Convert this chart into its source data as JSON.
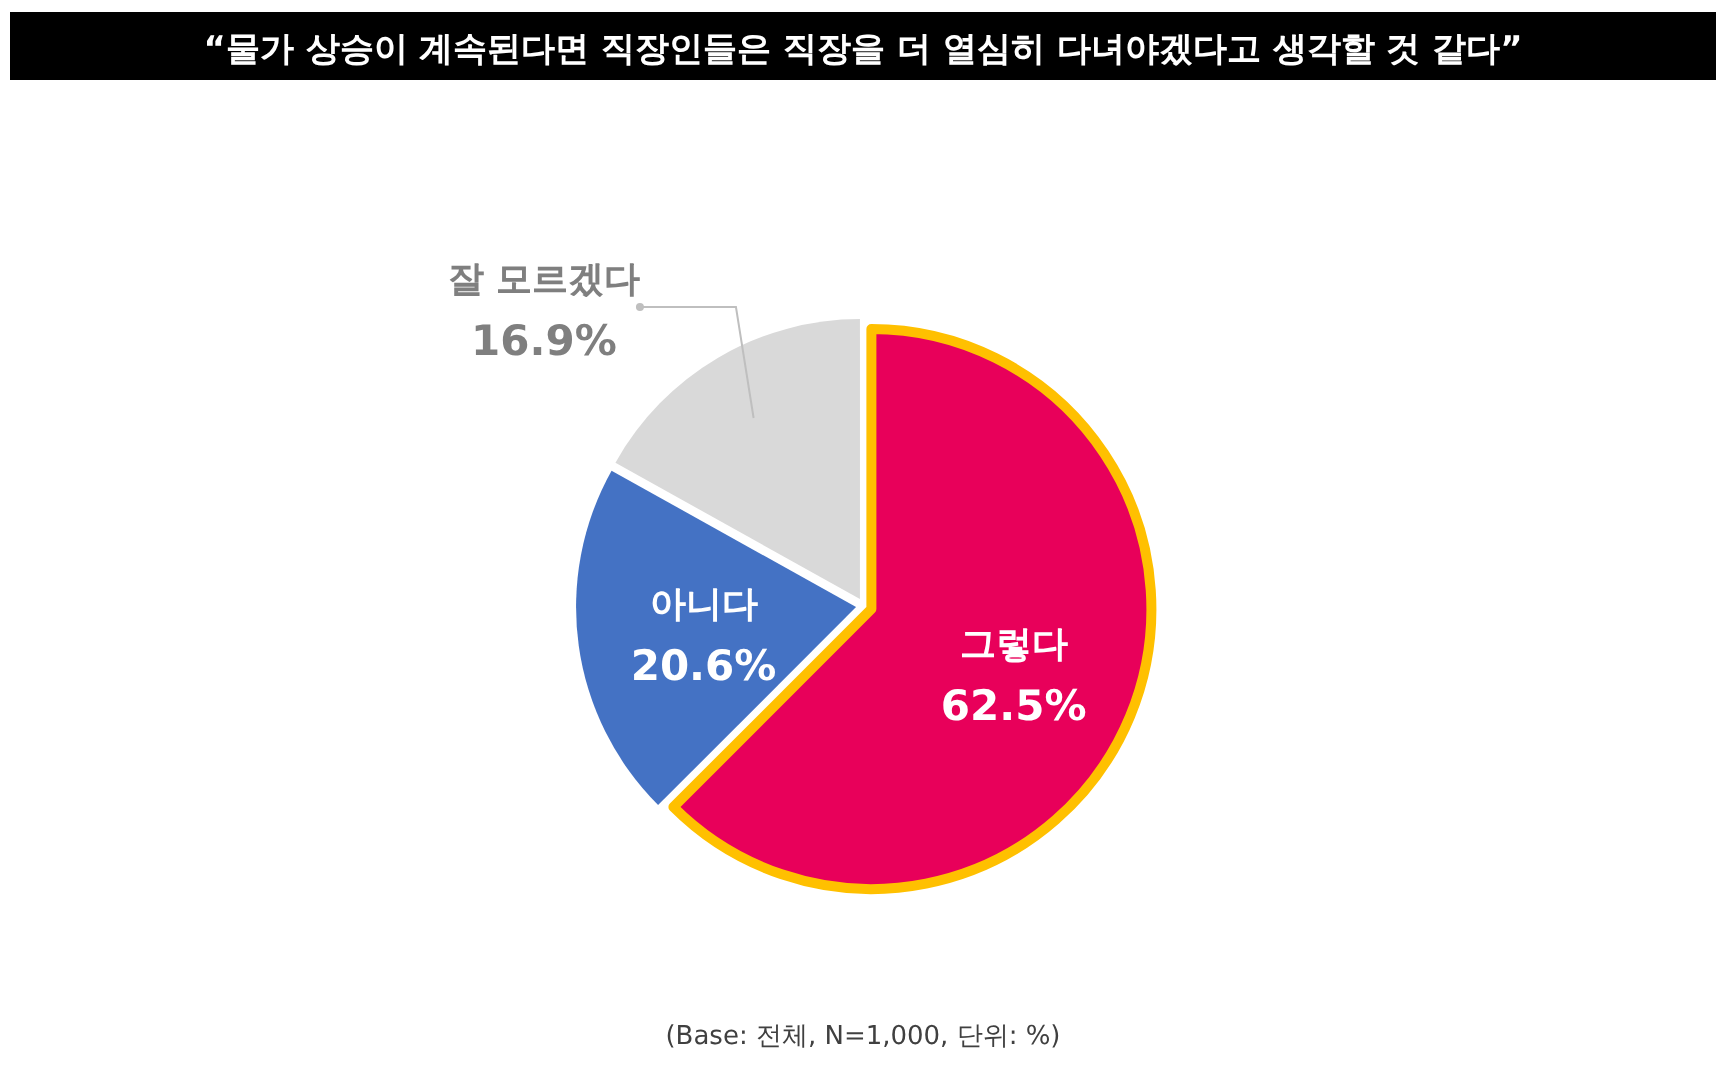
{
  "chart_data": {
    "type": "pie",
    "title": "“물가 상승이 계속된다면 직장인들은 직장을 더 열심히 다녀야겠다고 생각할 것 같다”",
    "categories": [
      "그렇다",
      "아니다",
      "잘 모르겠다"
    ],
    "values": [
      62.5,
      20.6,
      16.9
    ],
    "colors": [
      "#e8005a",
      "#4472c4",
      "#d9d9d9"
    ],
    "value_labels": [
      "62.5%",
      "20.6%",
      "16.9%"
    ],
    "annotations": [
      "(Base: 전체, N=1,000, 단위: %)"
    ]
  }
}
